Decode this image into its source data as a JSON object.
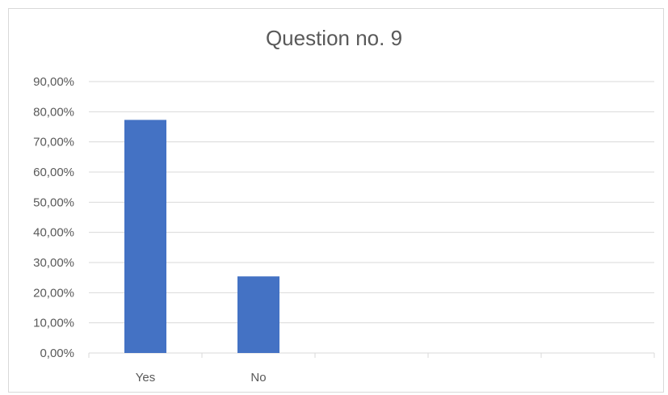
{
  "chart_data": {
    "type": "bar",
    "title": "Question no. 9",
    "categories": [
      "Yes",
      "No",
      "",
      "",
      ""
    ],
    "values": [
      77.3,
      25.4,
      null,
      null,
      null
    ],
    "ylim": [
      0,
      90
    ],
    "ytick_step": 10,
    "ytick_labels": [
      "0,00%",
      "10,00%",
      "20,00%",
      "30,00%",
      "40,00%",
      "50,00%",
      "60,00%",
      "70,00%",
      "80,00%",
      "90,00%"
    ],
    "xlabel": "",
    "ylabel": "",
    "grid": true,
    "bar_color": "#4472c4",
    "grid_color": "#d9d9d9",
    "text_color": "#595959"
  }
}
